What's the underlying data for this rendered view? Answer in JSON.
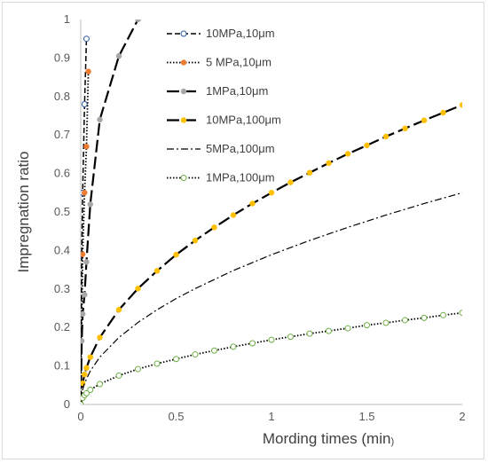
{
  "chart_data": {
    "type": "scatter",
    "xlabel": "Mording times (min",
    "xlabel_suffix": ")",
    "ylabel": "Impregnation ratio",
    "xlim": [
      0,
      2
    ],
    "ylim": [
      0,
      1
    ],
    "x_ticks": [
      "0",
      "0.5",
      "1",
      "1.5",
      "2"
    ],
    "y_ticks": [
      "0",
      "0.1",
      "0.2",
      "0.3",
      "0.4",
      "0.5",
      "0.6",
      "0.7",
      "0.8",
      "0.9",
      "1"
    ],
    "grid": false,
    "legend_position": "top-center",
    "series": [
      {
        "name": "10MPa,10μm",
        "color": "#2e5aa8",
        "line": "dash",
        "marker": "open-circle",
        "x": [
          0,
          0.005,
          0.01,
          0.02,
          0.03
        ],
        "y": [
          0,
          0.39,
          0.55,
          0.78,
          0.95
        ]
      },
      {
        "name": "5 MPa,10μm",
        "color": "#ed7d31",
        "line": "dot",
        "marker": "filled-circle",
        "x": [
          0,
          0.01,
          0.02,
          0.03,
          0.04
        ],
        "y": [
          0,
          0.39,
          0.55,
          0.67,
          0.865
        ]
      },
      {
        "name": "1MPa,10μm",
        "color": "#a6a6a6",
        "line": "long-dash",
        "marker": "filled-circle",
        "x": [
          0,
          0.005,
          0.01,
          0.02,
          0.03,
          0.05,
          0.1,
          0.2,
          0.3
        ],
        "y": [
          0,
          0.165,
          0.235,
          0.285,
          0.37,
          0.52,
          0.74,
          0.905,
          1.0
        ]
      },
      {
        "name": "10MPa,100μm",
        "color": "#ffc000",
        "line": "long-dash",
        "marker": "filled-circle",
        "x": [
          0,
          0.01,
          0.02,
          0.03,
          0.05,
          0.1,
          0.2,
          0.3,
          0.4,
          0.5,
          0.6,
          0.7,
          0.8,
          0.9,
          1.0,
          1.1,
          1.2,
          1.3,
          1.4,
          1.5,
          1.6,
          1.7,
          1.8,
          1.9,
          2.0
        ],
        "y": [
          0,
          0.055,
          0.078,
          0.095,
          0.123,
          0.174,
          0.246,
          0.301,
          0.347,
          0.389,
          0.426,
          0.46,
          0.492,
          0.522,
          0.55,
          0.577,
          0.602,
          0.627,
          0.651,
          0.673,
          0.696,
          0.717,
          0.738,
          0.758,
          0.778
        ]
      },
      {
        "name": "5MPa,100μm",
        "color": "#000000",
        "line": "dash-dot",
        "marker": "none",
        "x": [
          0,
          0.01,
          0.02,
          0.05,
          0.1,
          0.2,
          0.3,
          0.4,
          0.5,
          0.6,
          0.8,
          1.0,
          1.2,
          1.4,
          1.6,
          1.8,
          2.0
        ],
        "y": [
          0,
          0.039,
          0.055,
          0.087,
          0.123,
          0.174,
          0.213,
          0.246,
          0.275,
          0.301,
          0.348,
          0.389,
          0.426,
          0.46,
          0.492,
          0.522,
          0.55
        ]
      },
      {
        "name": "1MPa,100μm",
        "color": "#70ad47",
        "line": "dot",
        "marker": "open-circle",
        "x": [
          0,
          0.01,
          0.02,
          0.03,
          0.05,
          0.1,
          0.2,
          0.3,
          0.4,
          0.5,
          0.6,
          0.7,
          0.8,
          0.9,
          1.0,
          1.1,
          1.2,
          1.3,
          1.4,
          1.5,
          1.6,
          1.7,
          1.8,
          1.9,
          2.0
        ],
        "y": [
          0,
          0.017,
          0.024,
          0.029,
          0.038,
          0.053,
          0.075,
          0.092,
          0.106,
          0.118,
          0.13,
          0.14,
          0.15,
          0.159,
          0.168,
          0.176,
          0.184,
          0.191,
          0.198,
          0.206,
          0.212,
          0.219,
          0.225,
          0.232,
          0.238
        ]
      }
    ]
  }
}
